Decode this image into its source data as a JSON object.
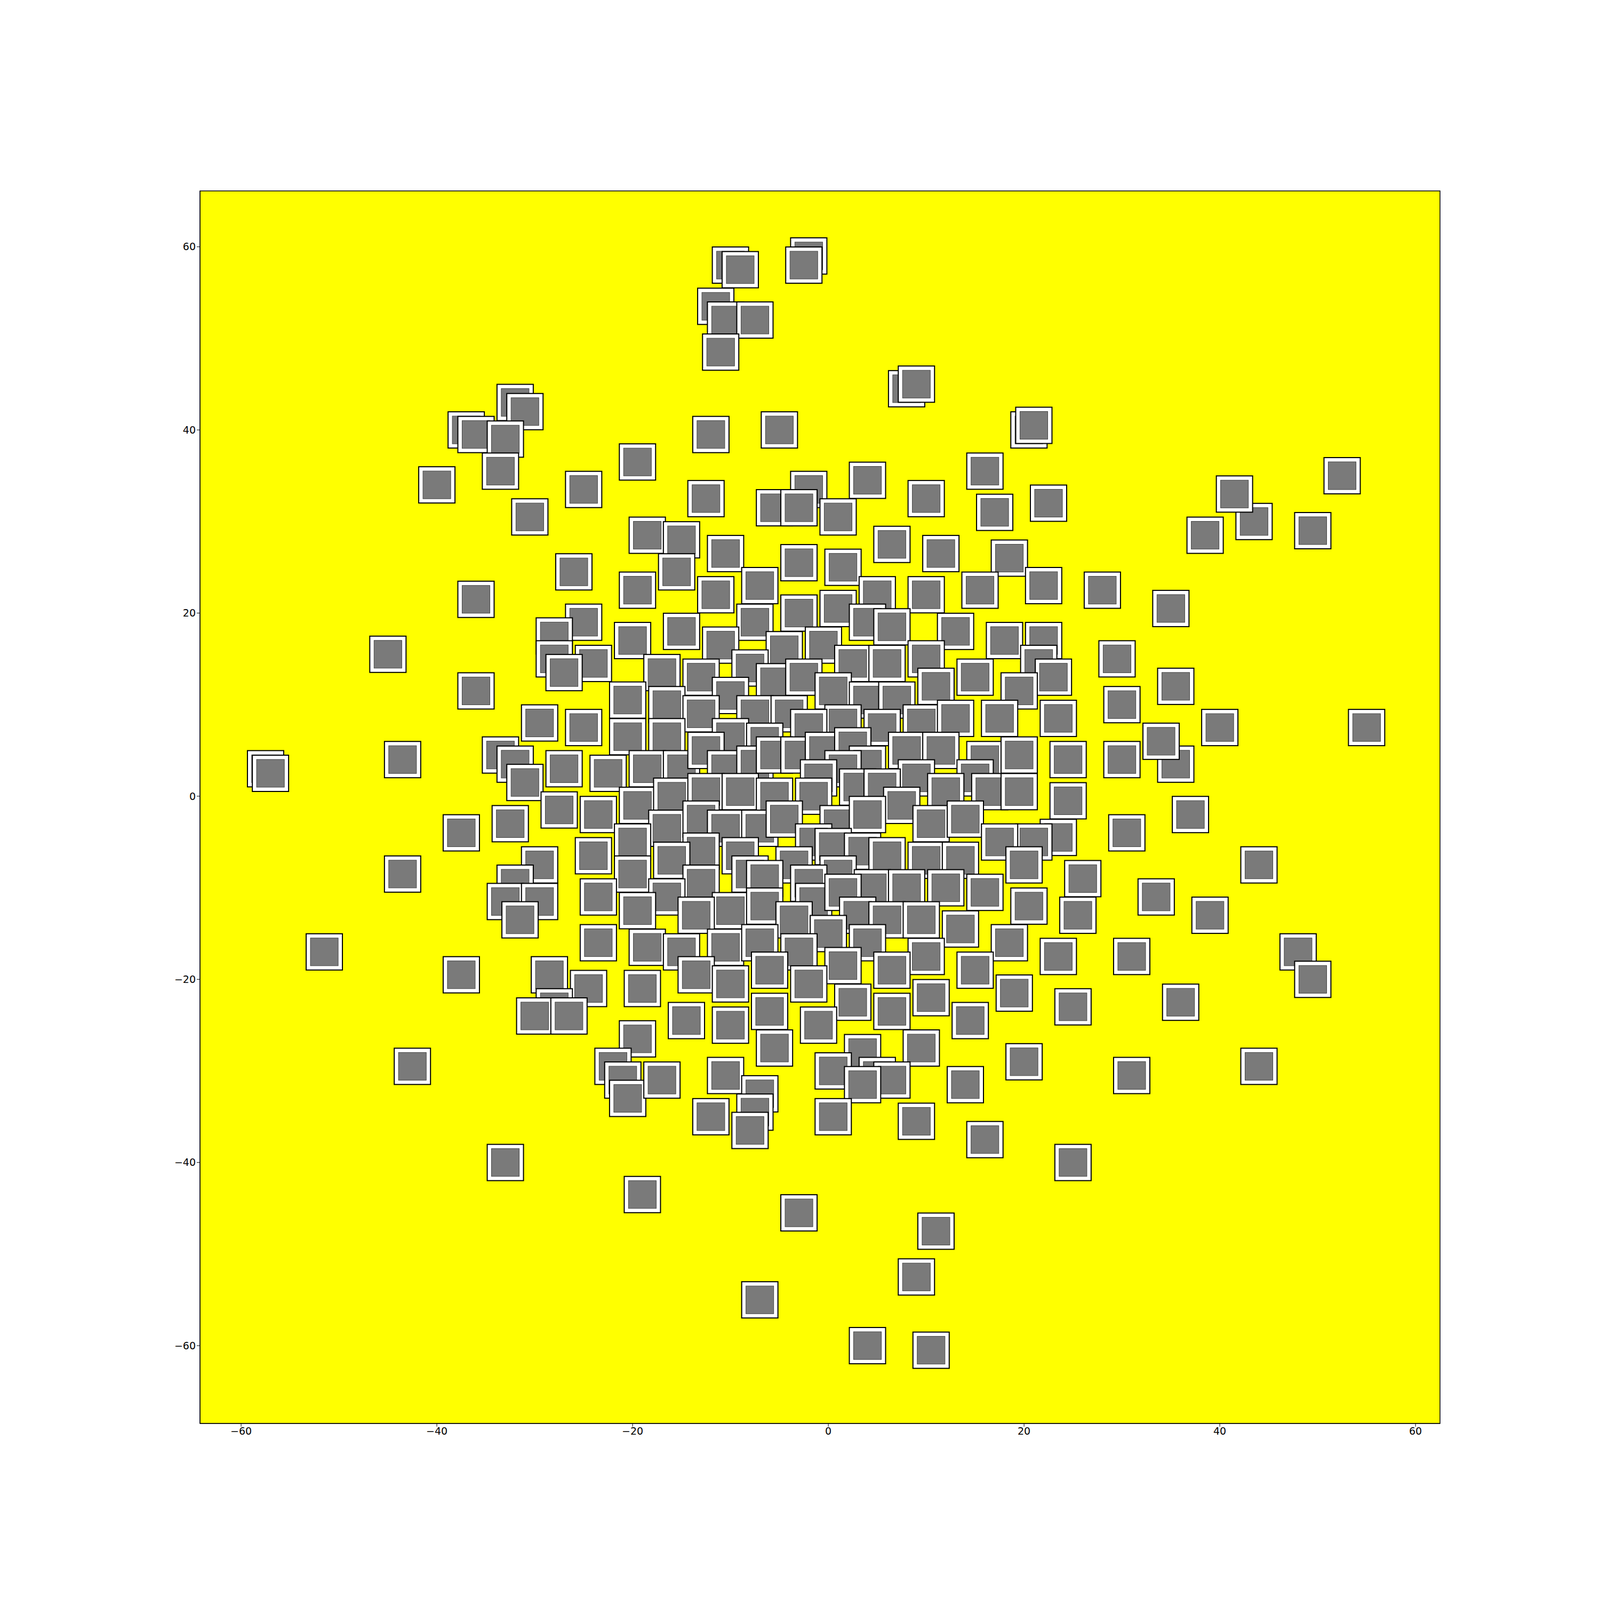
{
  "chart_data": {
    "type": "scatter",
    "marker": "image",
    "color": "#7a7a7a",
    "grid": false,
    "xlim": [
      -64.2,
      62.5
    ],
    "ylim": [
      -68.5,
      66.1
    ],
    "xticks": [
      -60,
      -40,
      -20,
      0,
      20,
      40,
      60
    ],
    "yticks": [
      -60,
      -40,
      -20,
      0,
      20,
      40,
      60
    ],
    "x": [
      -10,
      -9,
      -11.5,
      -10.5,
      -7.5,
      -11,
      -2,
      -2.5,
      8,
      9,
      20.5,
      21,
      -32,
      -31,
      -37,
      -36,
      -33,
      -33.5,
      -40,
      -30.5,
      -19.5,
      -12,
      -5,
      -25,
      -36,
      -45,
      -36,
      -57.5,
      -57,
      -43.5,
      -43.5,
      -51.5,
      -37.5,
      -42.5,
      -33,
      -19,
      -3,
      -7,
      11,
      9,
      4,
      10.5,
      25,
      31,
      44,
      36,
      31,
      39,
      44,
      48,
      49.5,
      37,
      30.5,
      55,
      52.5,
      49.5,
      43.5,
      41.5,
      38.5,
      35,
      35.5,
      40,
      35.5,
      34,
      22.5,
      17,
      16,
      18.5,
      28,
      29.5,
      30,
      30,
      4,
      -2,
      -5.5,
      -3,
      1,
      10,
      -12.5,
      -18.5,
      -15,
      -15.5,
      -10.5,
      6.5,
      11.5,
      -26,
      -3,
      1.5,
      -19.5,
      -11.5,
      -7,
      5,
      10,
      15.5,
      22,
      -25,
      -28,
      -20,
      -15,
      -7.5,
      -3,
      1,
      4,
      6.5,
      13,
      18,
      22,
      -11,
      -4.5,
      -0.5,
      -28,
      -24,
      -8,
      2.5,
      6,
      10,
      21.5,
      -17,
      -27,
      -13,
      -5.5,
      -2.5,
      15,
      23,
      11,
      19.5,
      -20.5,
      -16.5,
      -10,
      0.5,
      4,
      7,
      -13,
      -7.5,
      -4,
      1.5,
      9.5,
      13,
      17.5,
      23.5,
      -29.5,
      -25,
      -20.5,
      -16.5,
      -10,
      -6.5,
      -2,
      5.5,
      -33.5,
      -32,
      -31,
      -27,
      -22.5,
      -18.5,
      -15,
      -12.5,
      -10.5,
      -7.5,
      -5.5,
      -3,
      -0.5,
      2.5,
      4,
      8,
      11.5,
      16,
      19.5,
      24.5,
      15,
      9,
      1.5,
      -1,
      -19.5,
      -16,
      -12.5,
      -9,
      -5.5,
      -1.5,
      3,
      5.5,
      12,
      16.5,
      19.5,
      24.5,
      7.5,
      -27.5,
      -23.5,
      -32.5,
      -37.5,
      -16.5,
      -13,
      -10.5,
      -7,
      -4.5,
      1,
      4,
      10.5,
      14,
      23.5,
      21,
      17.5,
      -24,
      -20,
      -13,
      -9,
      -1.5,
      0.5,
      3.5,
      6,
      10,
      13.5,
      20,
      -16,
      -29.5,
      -8,
      -3.5,
      1,
      -32,
      -20,
      -13,
      -6.5,
      -2,
      4.5,
      8,
      26,
      -33,
      -29.5,
      -23.5,
      -16.5,
      -10,
      -6.5,
      -1.5,
      1.5,
      12,
      16,
      20.5,
      33.5,
      -31.5,
      -19.5,
      -13.5,
      -3.5,
      3,
      6,
      9.5,
      13.5,
      25.5,
      -23.5,
      -18.5,
      -15,
      -10.5,
      -7,
      0,
      4,
      18.5,
      -3,
      10,
      1.5,
      6.5,
      -13.5,
      -6,
      15,
      23.5,
      -28.5,
      -24.5,
      -19,
      -10,
      -2,
      10.5,
      19,
      2.5,
      -6,
      6.5,
      25,
      -28,
      -30,
      -26.5,
      -14.5,
      -1,
      14.5,
      -10,
      -19.5,
      -5.5,
      3.5,
      9.5,
      20,
      -22,
      -21,
      -20.5,
      -17,
      -10.5,
      0.5,
      5,
      6.5,
      14,
      3.5,
      -7,
      -7.5,
      -8,
      -12,
      0.5,
      9,
      16
    ],
    "y": [
      58,
      57.5,
      53.5,
      52,
      52,
      48.5,
      59,
      58,
      44.5,
      45,
      40,
      40.5,
      43,
      42,
      40,
      39.5,
      39,
      35.5,
      34,
      30.5,
      36.5,
      39.5,
      40,
      33.5,
      21.5,
      15.5,
      11.5,
      3,
      2.5,
      4,
      -8.5,
      -17,
      -19.5,
      -29.5,
      -40,
      -43.5,
      -45.5,
      -55,
      -47.5,
      -52.5,
      -60,
      -60.5,
      -40,
      -30.5,
      -29.5,
      -22.5,
      -17.5,
      -13,
      -7.5,
      -17,
      -20,
      -2,
      -4,
      7.5,
      35,
      29,
      30,
      33,
      28.5,
      20.5,
      12,
      7.5,
      3.5,
      6,
      32,
      31,
      35.5,
      26,
      22.5,
      15,
      10,
      4,
      34.5,
      33.5,
      31.5,
      31.5,
      30.5,
      32.5,
      32.5,
      28.5,
      28,
      24.5,
      26.5,
      27.5,
      26.5,
      24.5,
      25.5,
      25,
      22.5,
      22,
      23,
      22,
      22,
      22.5,
      23,
      19,
      17.5,
      17,
      18,
      19,
      20,
      20.5,
      19,
      18.5,
      18,
      17,
      17,
      16.5,
      16,
      16.5,
      15,
      14.5,
      14,
      14.5,
      14.5,
      15,
      14.5,
      13.5,
      13.5,
      13,
      12.5,
      13,
      13,
      13,
      12,
      11.5,
      10.5,
      10,
      11,
      11.5,
      10.5,
      10.5,
      9,
      9,
      9,
      8,
      8,
      8.5,
      8.5,
      8.5,
      8,
      7.5,
      6.5,
      6.5,
      6.5,
      6,
      7.5,
      7.5,
      4.5,
      3.5,
      1.5,
      3,
      2.5,
      3,
      3,
      5,
      3,
      3.5,
      4.5,
      4.5,
      5,
      5.5,
      3.5,
      5,
      5,
      4,
      4.5,
      4,
      2,
      2,
      3,
      2,
      -1,
      0,
      0.5,
      0.5,
      0,
      0,
      1,
      1,
      0.5,
      0.5,
      0.5,
      -0.5,
      -1,
      -1.5,
      -2,
      -3,
      -4,
      -3.5,
      -2.5,
      -3.5,
      -3.5,
      -2.5,
      -3,
      -2,
      -3,
      -2.5,
      -4.5,
      -5,
      -5,
      -6.5,
      -5,
      -6,
      -6.5,
      -5,
      -5.5,
      -6,
      -6.5,
      -7,
      -7,
      -7.5,
      -7,
      -7.5,
      -8.5,
      -7.5,
      -8.5,
      -9.5,
      -8.5,
      -9.5,
      -9,
      -9.5,
      -10,
      -10,
      -9,
      -11.5,
      -11.5,
      -11,
      -11,
      -12.5,
      -12,
      -11.5,
      -10.5,
      -10,
      -10.5,
      -12,
      -11,
      -13.5,
      -12.5,
      -13,
      -13.5,
      -13,
      -13.5,
      -13.5,
      -14.5,
      -13,
      -16,
      -16.5,
      -17,
      -16.5,
      -16,
      -15,
      -16,
      -16,
      -17,
      -17.5,
      -18.5,
      -19,
      -19.5,
      -19,
      -19,
      -17.5,
      -19.5,
      -21,
      -21,
      -20.5,
      -20.5,
      -22,
      -21.5,
      -22.5,
      -23.5,
      -23.5,
      -23,
      -23,
      -24,
      -24,
      -24.5,
      -25,
      -24.5,
      -25,
      -26.5,
      -27.5,
      -28,
      -27.5,
      -29,
      -29.5,
      -31,
      -33,
      -31,
      -30.5,
      -30,
      -30.5,
      -31,
      -31.5,
      -31.5,
      -32.5,
      -34.5,
      -36.5,
      -35,
      -35,
      -35.5,
      -37.5
    ]
  }
}
